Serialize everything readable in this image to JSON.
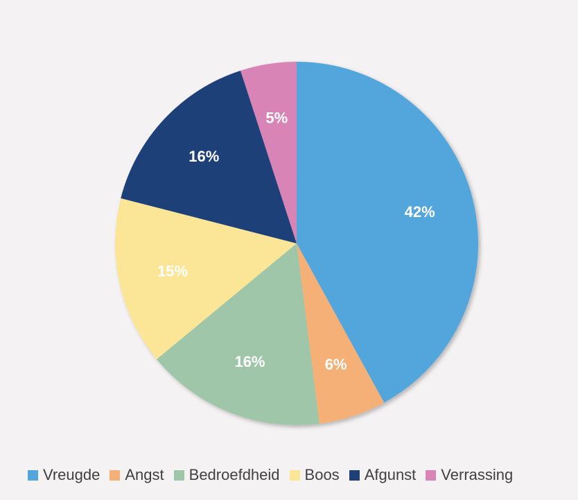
{
  "chart_data": {
    "type": "pie",
    "categories": [
      "Vreugde",
      "Angst",
      "Bedroefdheid",
      "Boos",
      "Afgunst",
      "Verrassing"
    ],
    "values": [
      42,
      6,
      16,
      15,
      16,
      5
    ],
    "data_labels": [
      "42%",
      "6%",
      "16%",
      "15%",
      "16%",
      "5%"
    ],
    "colors": [
      "#52a6dc",
      "#f4b077",
      "#9fc6a8",
      "#fbe597",
      "#1f3f77",
      "#d884b7"
    ],
    "legend_position": "bottom",
    "start_angle": "top, clockwise"
  }
}
